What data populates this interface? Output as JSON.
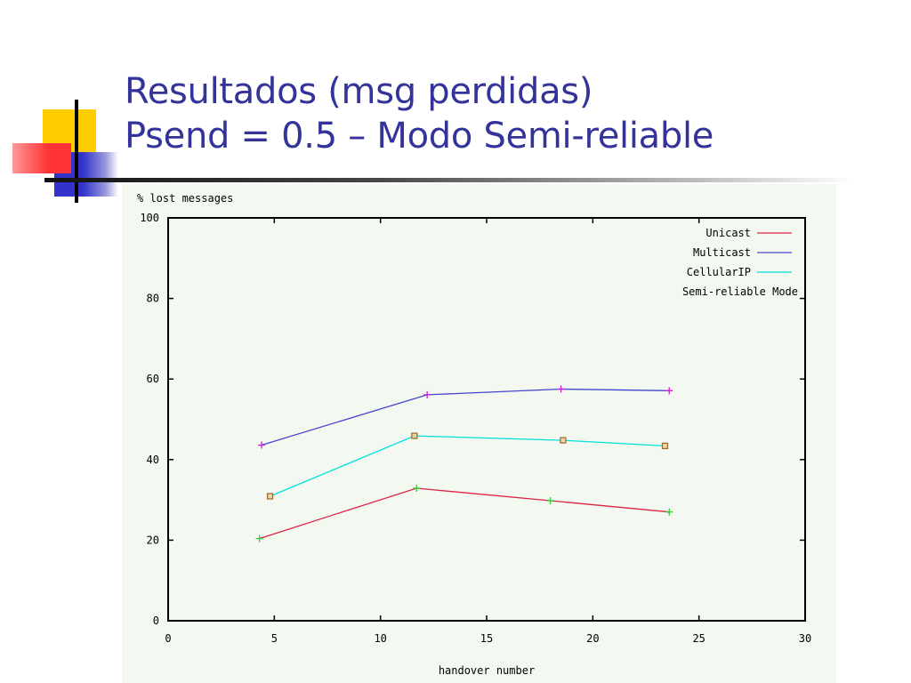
{
  "slide": {
    "title_line1": "Resultados (msg perdidas)",
    "title_line2": "Psend = 0.5 – Modo Semi-reliable"
  },
  "theme": {
    "title_color": "#333399",
    "deco_yellow": "#ffcc00",
    "deco_red": "#ff3333",
    "deco_blue": "#3333cc"
  },
  "chart_data": {
    "type": "line",
    "ylabel": "% lost messages",
    "xlabel": "handover number",
    "xlim": [
      0,
      30
    ],
    "ylim": [
      0,
      100
    ],
    "xticks": [
      0,
      5,
      10,
      15,
      20,
      25,
      30
    ],
    "yticks": [
      0,
      20,
      40,
      60,
      80,
      100
    ],
    "grid": false,
    "legend_position": "top-right",
    "legend_title": "Semi-reliable Mode",
    "series": [
      {
        "name": "Unicast",
        "color": "#dd2244",
        "marker_color": "#33cc33",
        "marker": "plus",
        "x": [
          4.3,
          11.7,
          18,
          23.6
        ],
        "y": [
          20.4,
          32.9,
          29.8,
          27.0
        ]
      },
      {
        "name": "Multicast",
        "color": "#4444cc",
        "marker_color": "#cc22cc",
        "marker": "plus",
        "x": [
          4.4,
          12.2,
          18.5,
          23.6
        ],
        "y": [
          43.6,
          56.1,
          57.5,
          57.1
        ]
      },
      {
        "name": "CellularIP",
        "color": "#00e0e0",
        "marker_color": "#996633",
        "marker": "square",
        "x": [
          4.8,
          11.6,
          18.6,
          23.4
        ],
        "y": [
          30.9,
          45.9,
          44.8,
          43.4
        ]
      }
    ]
  }
}
